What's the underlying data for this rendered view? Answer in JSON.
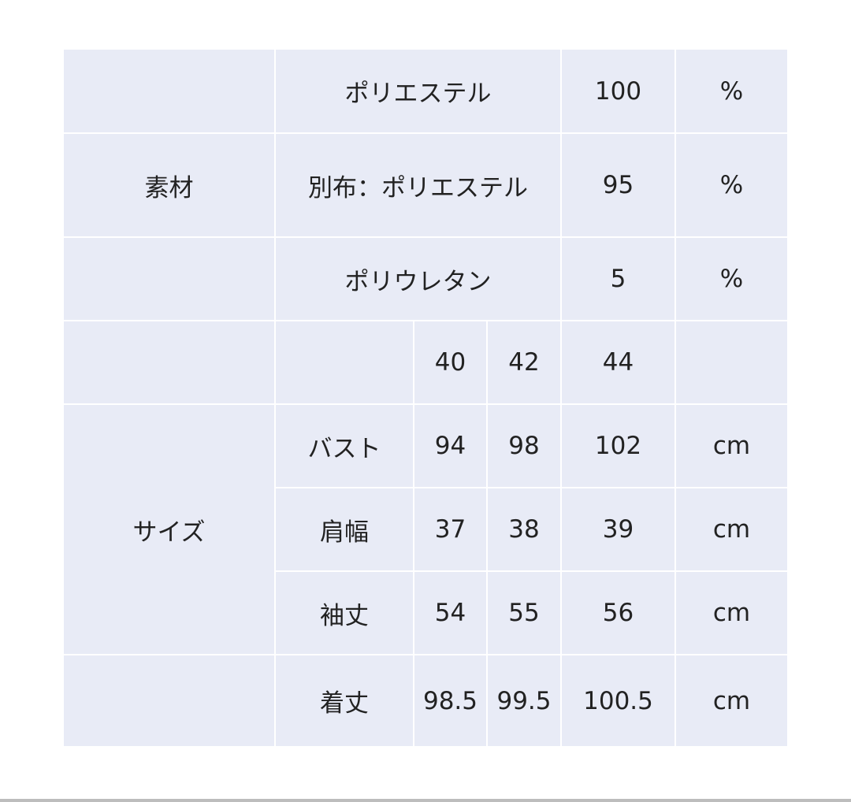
{
  "material": {
    "label": "素材",
    "rows": [
      {
        "name": "ポリエステル",
        "value": "100",
        "unit": "%"
      },
      {
        "name": "別布：ポリエステル",
        "value": "95",
        "unit": "%"
      },
      {
        "name": "ポリウレタン",
        "value": "5",
        "unit": "%"
      }
    ]
  },
  "size": {
    "label": "サイズ",
    "sizes": [
      "40",
      "42",
      "44"
    ],
    "rows": [
      {
        "name": "バスト",
        "values": [
          "94",
          "98",
          "102"
        ],
        "unit": "cm"
      },
      {
        "name": "肩幅",
        "values": [
          "37",
          "38",
          "39"
        ],
        "unit": "cm"
      },
      {
        "name": "袖丈",
        "values": [
          "54",
          "55",
          "56"
        ],
        "unit": "cm"
      },
      {
        "name": "着丈",
        "values": [
          "98.5",
          "99.5",
          "100.5"
        ],
        "unit": "cm"
      }
    ]
  }
}
